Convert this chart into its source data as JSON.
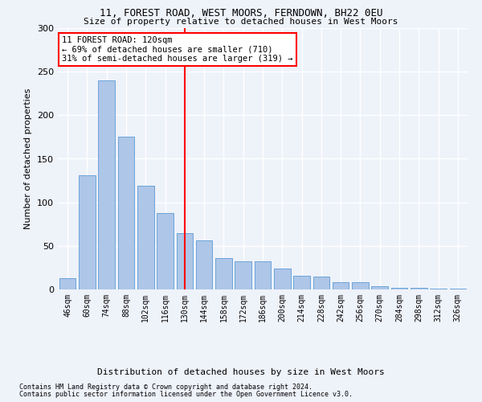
{
  "title1": "11, FOREST ROAD, WEST MOORS, FERNDOWN, BH22 0EU",
  "title2": "Size of property relative to detached houses in West Moors",
  "xlabel": "Distribution of detached houses by size in West Moors",
  "ylabel": "Number of detached properties",
  "categories": [
    "46sqm",
    "60sqm",
    "74sqm",
    "88sqm",
    "102sqm",
    "116sqm",
    "130sqm",
    "144sqm",
    "158sqm",
    "172sqm",
    "186sqm",
    "200sqm",
    "214sqm",
    "228sqm",
    "242sqm",
    "256sqm",
    "270sqm",
    "284sqm",
    "298sqm",
    "312sqm",
    "326sqm"
  ],
  "values": [
    13,
    131,
    240,
    175,
    119,
    88,
    65,
    56,
    36,
    32,
    32,
    24,
    16,
    15,
    8,
    8,
    4,
    2,
    2,
    1,
    1
  ],
  "bar_color": "#aec6e8",
  "bar_edge_color": "#5b9bd5",
  "vline_x": 6.0,
  "vline_color": "red",
  "annotation_text": "11 FOREST ROAD: 120sqm\n← 69% of detached houses are smaller (710)\n31% of semi-detached houses are larger (319) →",
  "annotation_box_color": "white",
  "annotation_box_edge_color": "red",
  "footnote1": "Contains HM Land Registry data © Crown copyright and database right 2024.",
  "footnote2": "Contains public sector information licensed under the Open Government Licence v3.0.",
  "ylim": [
    0,
    300
  ],
  "background_color": "#eef2f9",
  "grid_color": "white"
}
